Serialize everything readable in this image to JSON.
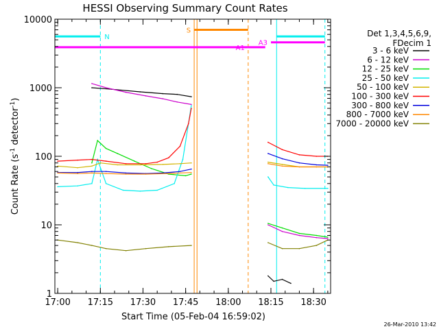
{
  "chart_data": {
    "type": "line",
    "title": "HESSI Observing Summary Count Rates",
    "xlabel": "Start Time (05-Feb-04 16:59:02)",
    "ylabel_prefix": "Count Rate (s",
    "ylabel_sup": "-1",
    "ylabel_mid": " detector",
    "ylabel_suffix": ")",
    "yscale": "log",
    "ylim": [
      1,
      10000
    ],
    "xlim_min": [
      0,
      97
    ],
    "x_ticks": [
      {
        "v": 1,
        "label": "17:00"
      },
      {
        "v": 16,
        "label": "17:15"
      },
      {
        "v": 31,
        "label": "17:30"
      },
      {
        "v": 46,
        "label": "17:45"
      },
      {
        "v": 61,
        "label": "18:00"
      },
      {
        "v": 76,
        "label": "18:15"
      },
      {
        "v": 91,
        "label": "18:30"
      }
    ],
    "y_ticks": [
      {
        "v": 1,
        "label": "1"
      },
      {
        "v": 10,
        "label": "10"
      },
      {
        "v": 100,
        "label": "100"
      },
      {
        "v": 1000,
        "label": "1000"
      },
      {
        "v": 10000,
        "label": "10000"
      }
    ],
    "legend_header": [
      "Det 1,3,4,5,6,9,",
      "FDecim 1"
    ],
    "legend_position": "right",
    "timestamp": "26-Mar-2010 13:42",
    "series": [
      {
        "name": "3 - 6 keV",
        "color": "#000000",
        "segments": [
          [
            [
              13,
              1000
            ],
            [
              20,
              950
            ],
            [
              30,
              870
            ],
            [
              38,
              820
            ],
            [
              43,
              800
            ],
            [
              48,
              740
            ]
          ],
          [
            [
              75,
              1.8
            ],
            [
              77,
              1.5
            ],
            [
              80,
              1.6
            ],
            [
              83,
              1.4
            ]
          ]
        ]
      },
      {
        "name": "6 - 12 keV",
        "color": "#cc00cc",
        "segments": [
          [
            [
              13,
              1150
            ],
            [
              18,
              1000
            ],
            [
              25,
              860
            ],
            [
              32,
              760
            ],
            [
              38,
              690
            ],
            [
              43,
              620
            ],
            [
              48,
              570
            ]
          ],
          [
            [
              75,
              10
            ],
            [
              80,
              8
            ],
            [
              86,
              7
            ],
            [
              92,
              6.5
            ],
            [
              96,
              6.3
            ]
          ]
        ]
      },
      {
        "name": "12 - 25 keV",
        "color": "#00dd00",
        "segments": [
          [
            [
              13,
              80
            ],
            [
              15,
              170
            ],
            [
              18,
              130
            ],
            [
              22,
              110
            ],
            [
              28,
              85
            ],
            [
              34,
              66
            ],
            [
              40,
              55
            ],
            [
              46,
              52
            ],
            [
              48,
              55
            ]
          ],
          [
            [
              75,
              10.5
            ],
            [
              80,
              9
            ],
            [
              86,
              7.5
            ],
            [
              92,
              7
            ],
            [
              96,
              6.6
            ]
          ]
        ]
      },
      {
        "name": "25 - 50 keV",
        "color": "#00eeee",
        "segments": [
          [
            [
              1,
              36
            ],
            [
              8,
              37
            ],
            [
              13,
              40
            ],
            [
              15,
              90
            ],
            [
              18,
              40
            ],
            [
              24,
              32
            ],
            [
              30,
              31
            ],
            [
              36,
              32
            ],
            [
              42,
              40
            ],
            [
              45,
              90
            ],
            [
              48,
              550
            ]
          ],
          [
            [
              75,
              50
            ],
            [
              77,
              38
            ],
            [
              82,
              35
            ],
            [
              88,
              34
            ],
            [
              96,
              34
            ]
          ]
        ]
      },
      {
        "name": "50 - 100 keV",
        "color": "#d2b400",
        "segments": [
          [
            [
              1,
              72
            ],
            [
              8,
              68
            ],
            [
              13,
              72
            ],
            [
              16,
              80
            ],
            [
              22,
              75
            ],
            [
              30,
              75
            ],
            [
              38,
              76
            ],
            [
              44,
              78
            ],
            [
              48,
              80
            ]
          ],
          [
            [
              75,
              82
            ],
            [
              80,
              76
            ],
            [
              86,
              70
            ],
            [
              92,
              70
            ],
            [
              96,
              70
            ]
          ]
        ]
      },
      {
        "name": "100 - 300 keV",
        "color": "#ff0000",
        "segments": [
          [
            [
              1,
              85
            ],
            [
              8,
              88
            ],
            [
              13,
              90
            ],
            [
              18,
              85
            ],
            [
              25,
              78
            ],
            [
              32,
              78
            ],
            [
              36,
              82
            ],
            [
              40,
              95
            ],
            [
              44,
              140
            ],
            [
              47,
              300
            ],
            [
              48,
              500
            ]
          ],
          [
            [
              75,
              160
            ],
            [
              80,
              125
            ],
            [
              86,
              105
            ],
            [
              92,
              100
            ],
            [
              96,
              100
            ]
          ]
        ]
      },
      {
        "name": "300 - 800 keV",
        "color": "#0000dd",
        "segments": [
          [
            [
              1,
              58
            ],
            [
              8,
              58
            ],
            [
              13,
              60
            ],
            [
              18,
              60
            ],
            [
              25,
              57
            ],
            [
              32,
              56
            ],
            [
              38,
              57
            ],
            [
              44,
              60
            ],
            [
              48,
              65
            ]
          ],
          [
            [
              75,
              110
            ],
            [
              80,
              92
            ],
            [
              86,
              80
            ],
            [
              92,
              75
            ],
            [
              96,
              74
            ]
          ]
        ]
      },
      {
        "name": "800 - 7000 keV",
        "color": "#ff8800",
        "segments": [
          [
            [
              1,
              57
            ],
            [
              8,
              56
            ],
            [
              13,
              57
            ],
            [
              18,
              56
            ],
            [
              25,
              55
            ],
            [
              32,
              55
            ],
            [
              40,
              56
            ],
            [
              48,
              58
            ]
          ],
          [
            [
              75,
              78
            ],
            [
              80,
              72
            ],
            [
              86,
              70
            ],
            [
              92,
              70
            ],
            [
              96,
              70
            ]
          ]
        ]
      },
      {
        "name": "7000 - 20000 keV",
        "color": "#808000",
        "segments": [
          [
            [
              1,
              6
            ],
            [
              8,
              5.5
            ],
            [
              13,
              5
            ],
            [
              18,
              4.5
            ],
            [
              25,
              4.2
            ],
            [
              32,
              4.5
            ],
            [
              40,
              4.8
            ],
            [
              48,
              5
            ]
          ],
          [
            [
              75,
              5.5
            ],
            [
              80,
              4.5
            ],
            [
              86,
              4.5
            ],
            [
              92,
              5
            ],
            [
              96,
              6
            ]
          ]
        ]
      }
    ],
    "flags": [
      {
        "label": "N",
        "color": "#00eeee",
        "value": 5600,
        "x0": 0,
        "x1": 16,
        "label_side": "right"
      },
      {
        "label": "",
        "color": "#00eeee",
        "value": 5600,
        "x0": 78,
        "x1": 95,
        "label_side": "right"
      },
      {
        "label": "S",
        "color": "#ff8800",
        "value": 7000,
        "x0": 49,
        "x1": 68,
        "label_side": "left"
      },
      {
        "label": "",
        "color": "#ff00ff",
        "value": 3900,
        "x0": 0,
        "x1": 68,
        "label_side": "right"
      },
      {
        "label": "A1",
        "color": "#ff00ff",
        "value": 3900,
        "x0": 68,
        "x1": 74,
        "label_side": "left"
      },
      {
        "label": "A3",
        "color": "#ff00ff",
        "value": 4600,
        "x0": 76,
        "x1": 95,
        "label_side": "left"
      }
    ],
    "vlines": [
      {
        "x": 16,
        "color": "#00eeee",
        "dashed": true
      },
      {
        "x": 95,
        "color": "#00eeee",
        "dashed": true
      },
      {
        "x": 0,
        "color": "#00eeee",
        "dashed": false
      },
      {
        "x": 78,
        "color": "#00eeee",
        "dashed": false
      },
      {
        "x": 49,
        "color": "#ff8800",
        "dashed": false
      },
      {
        "x": 50,
        "color": "#ff8800",
        "dashed": false
      },
      {
        "x": 68,
        "color": "#ff8800",
        "dashed": true
      }
    ]
  }
}
